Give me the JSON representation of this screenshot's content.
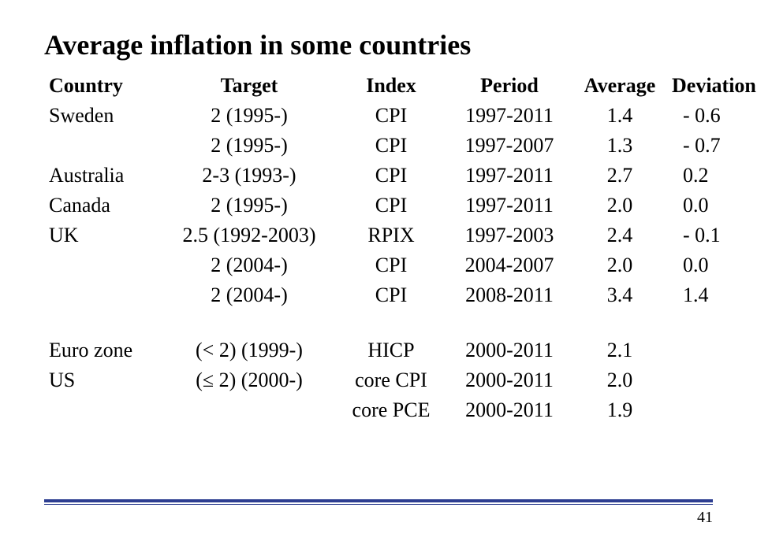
{
  "title": "Average inflation in some countries",
  "columns": [
    "Country",
    "Target",
    "Index",
    "Period",
    "Average",
    "Deviation"
  ],
  "rows1": [
    {
      "country": "Sweden",
      "target": "2 (1995-)",
      "index": "CPI",
      "period": "1997-2011",
      "avg": "1.4",
      "dev": "- 0.6"
    },
    {
      "country": "",
      "target": "2 (1995-)",
      "index": "CPI",
      "period": "1997-2007",
      "avg": "1.3",
      "dev": "- 0.7"
    },
    {
      "country": "Australia",
      "target": "2-3 (1993-)",
      "index": "CPI",
      "period": "1997-2011",
      "avg": "2.7",
      "dev": "  0.2"
    },
    {
      "country": "Canada",
      "target": "2 (1995-)",
      "index": "CPI",
      "period": "1997-2011",
      "avg": "2.0",
      "dev": "  0.0"
    },
    {
      "country": "UK",
      "target": "2.5 (1992-2003)",
      "index": "RPIX",
      "period": "1997-2003",
      "avg": "2.4",
      "dev": "- 0.1"
    },
    {
      "country": "",
      "target": "2 (2004-)",
      "index": "CPI",
      "period": "2004-2007",
      "avg": "2.0",
      "dev": "  0.0"
    },
    {
      "country": "",
      "target": "2 (2004-)",
      "index": "CPI",
      "period": "2008-2011",
      "avg": "3.4",
      "dev": "  1.4"
    }
  ],
  "rows2": [
    {
      "country": "Euro zone",
      "target": "(< 2) (1999-)",
      "index": "HICP",
      "period": "2000-2011",
      "avg": "2.1",
      "dev": ""
    },
    {
      "country": "US",
      "target": "(≤ 2) (2000-)",
      "index": "core CPI",
      "period": "2000-2011",
      "avg": "2.0",
      "dev": ""
    },
    {
      "country": "",
      "target": "",
      "index": "core PCE",
      "period": "2000-2011",
      "avg": "1.9",
      "dev": ""
    }
  ],
  "page": "41",
  "divider_color": "#2d3e91"
}
